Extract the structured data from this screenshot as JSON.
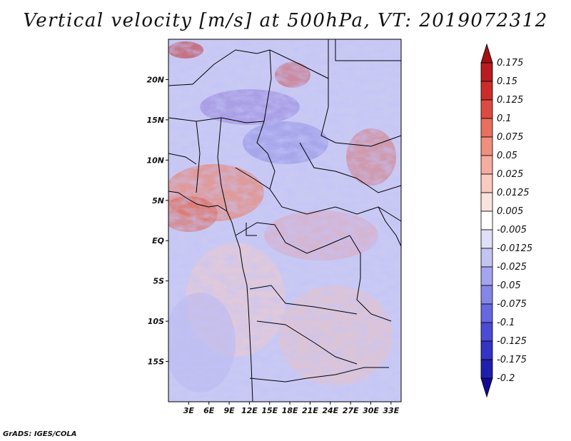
{
  "title": "Vertical velocity [m/s] at 500hPa, VT: 2019072312",
  "credit": "GrADS: IGES/COLA",
  "map": {
    "lat_ticks": [
      "20N",
      "15N",
      "10N",
      "5N",
      "EQ",
      "5S",
      "10S",
      "15S"
    ],
    "lat_values": [
      20,
      15,
      10,
      5,
      0,
      -5,
      -10,
      -15
    ],
    "lon_ticks": [
      "3E",
      "6E",
      "9E",
      "12E",
      "15E",
      "18E",
      "21E",
      "24E",
      "27E",
      "30E",
      "33E"
    ],
    "lon_values": [
      3,
      6,
      9,
      12,
      15,
      18,
      21,
      24,
      27,
      30,
      33
    ],
    "lon_range": [
      0,
      34.5
    ],
    "lat_range": [
      -20,
      25
    ]
  },
  "colorbar": {
    "labels": [
      "0.175",
      "0.15",
      "0.125",
      "0.1",
      "0.075",
      "0.05",
      "0.025",
      "0.0125",
      "0.005",
      "-0.005",
      "-0.0125",
      "-0.025",
      "-0.05",
      "-0.075",
      "-0.1",
      "-0.125",
      "-0.175",
      "-0.2"
    ],
    "colors": [
      "#a50f15",
      "#b81c1f",
      "#cb2d2b",
      "#dc4b42",
      "#e8705e",
      "#ef8f7e",
      "#f4ad9f",
      "#f8cac0",
      "#fbe3dd",
      "#ffffff",
      "#dfe0f7",
      "#c3c4f2",
      "#a4a5ee",
      "#8586e8",
      "#6767df",
      "#4b4bd4",
      "#3333c4",
      "#1f1fae",
      "#120a93"
    ]
  }
}
